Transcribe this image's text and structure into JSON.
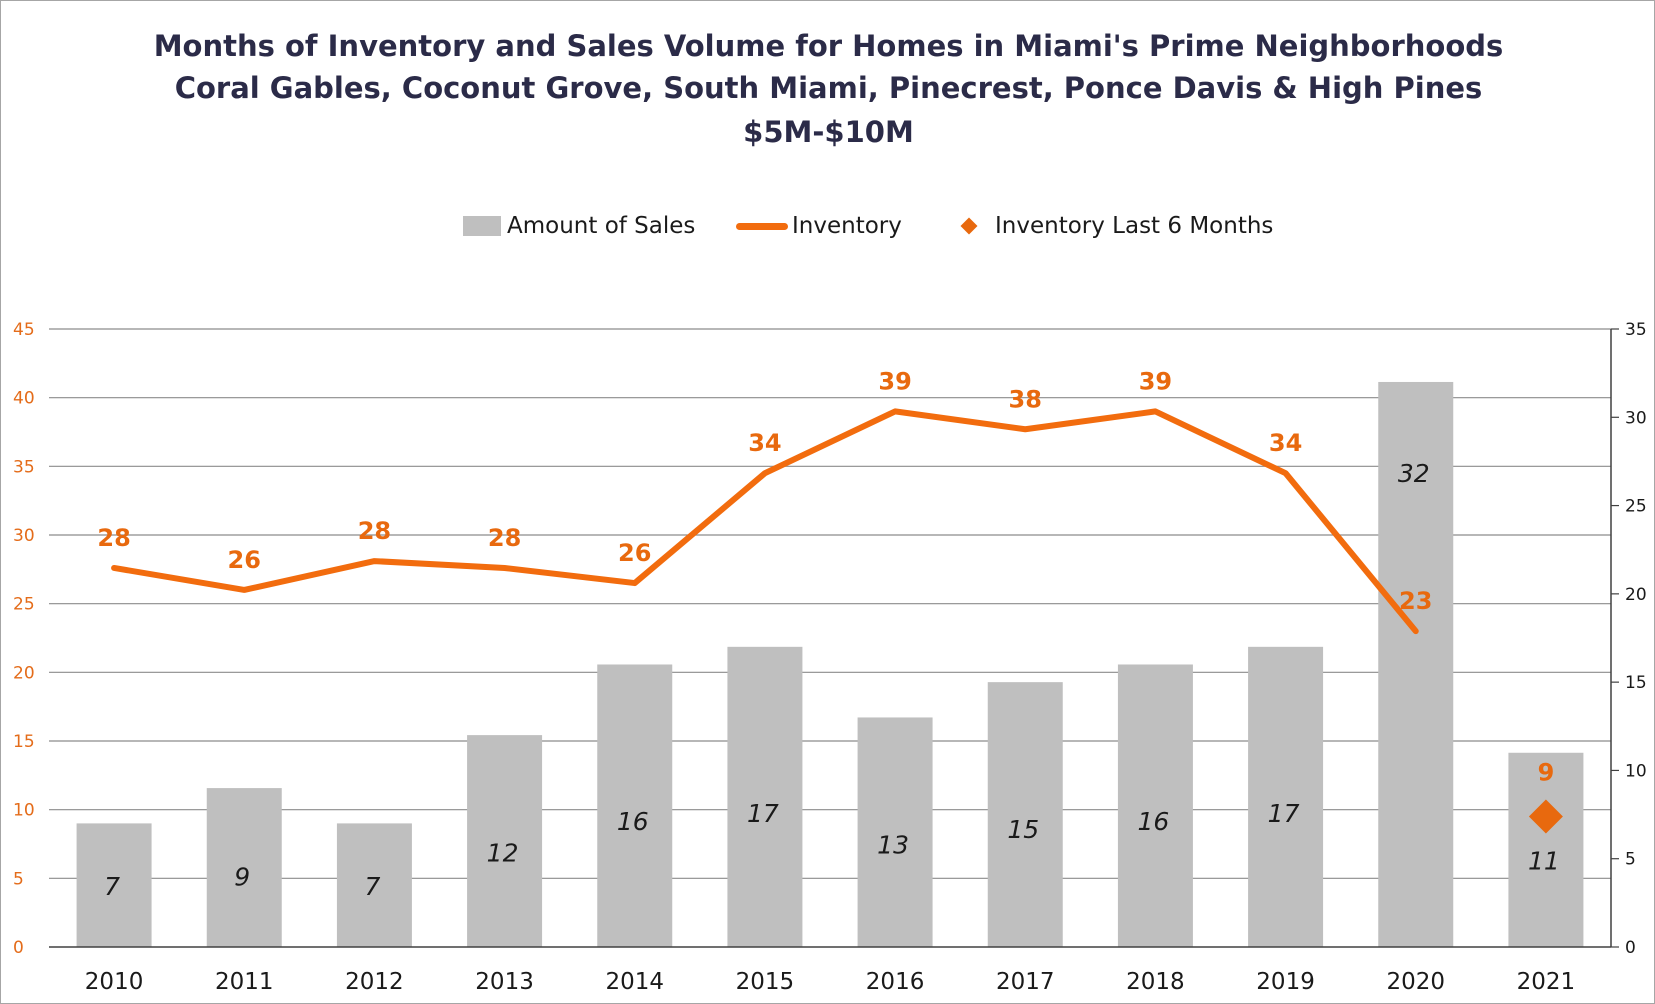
{
  "title_lines": [
    "Months of Inventory and Sales Volume for Homes in Miami's Prime Neighborhoods",
    "Coral Gables, Coconut Grove, South Miami, Pinecrest, Ponce Davis & High Pines",
    "$5M-$10M"
  ],
  "legend": {
    "sales": "Amount of Sales",
    "inventory": "Inventory",
    "inventory_last6": "Inventory Last 6 Months"
  },
  "colors": {
    "bar": "#bfbfbf",
    "line": "#f26c0e",
    "marker": "#e8690e",
    "left_axis_text": "#e46c1a",
    "grid": "#8c8c8c",
    "title": "#2b2b48"
  },
  "chart_data": {
    "type": "bar",
    "title": "Months of Inventory and Sales Volume for Homes in Miami's Prime Neighborhoods",
    "subtitle": "Coral Gables, Coconut Grove, South Miami, Pinecrest, Ponce Davis & High Pines / $5M-$10M",
    "categories": [
      "2010",
      "2011",
      "2012",
      "2013",
      "2014",
      "2015",
      "2016",
      "2017",
      "2018",
      "2019",
      "2020",
      "2021"
    ],
    "series": [
      {
        "name": "Amount of Sales",
        "type": "bar",
        "axis": "right",
        "values": [
          7,
          9,
          7,
          12,
          16,
          17,
          13,
          15,
          16,
          17,
          32,
          11
        ],
        "labels": [
          "7",
          "9",
          "7",
          "12",
          "16",
          "17",
          "13",
          "15",
          "16",
          "17",
          "32",
          "11"
        ]
      },
      {
        "name": "Inventory",
        "type": "line",
        "axis": "left",
        "values": [
          27.6,
          26.0,
          28.1,
          27.6,
          26.5,
          34.5,
          39.0,
          37.7,
          39.0,
          34.5,
          23.0,
          null
        ],
        "labels": [
          "28",
          "26",
          "28",
          "28",
          "26",
          "34",
          "39",
          "38",
          "39",
          "34",
          "23",
          ""
        ]
      },
      {
        "name": "Inventory Last 6 Months",
        "type": "scatter",
        "marker": "diamond",
        "axis": "left",
        "values": [
          null,
          null,
          null,
          null,
          null,
          null,
          null,
          null,
          null,
          null,
          null,
          9.5
        ],
        "labels": [
          "",
          "",
          "",
          "",
          "",
          "",
          "",
          "",
          "",
          "",
          "",
          "9"
        ]
      }
    ],
    "y_left": {
      "min": 0,
      "max": 45,
      "ticks": [
        "0",
        "5",
        "10",
        "15",
        "20",
        "25",
        "30",
        "35",
        "40",
        "45"
      ]
    },
    "y_right": {
      "min": 0,
      "max": 35,
      "ticks": [
        "0",
        "5",
        "10",
        "15",
        "20",
        "25",
        "30",
        "35"
      ]
    },
    "grid": true,
    "legend_position": "top"
  }
}
